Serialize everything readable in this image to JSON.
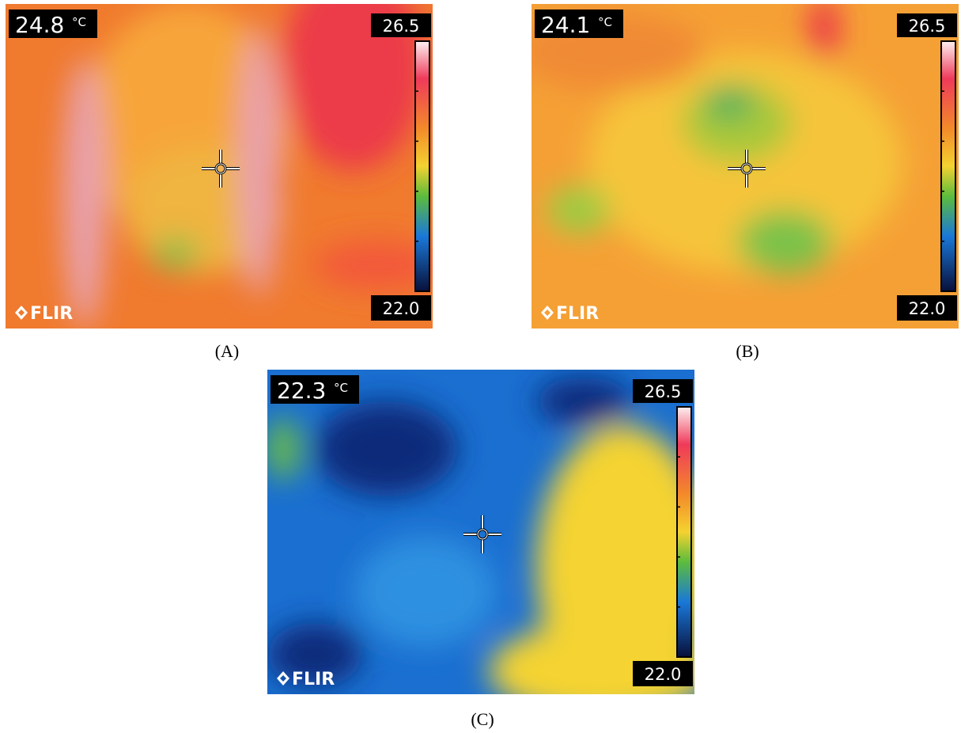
{
  "panels": [
    {
      "spot_temp": "24.8",
      "unit": "°C",
      "scale_max": "26.5",
      "scale_min": "22.0",
      "brand": "FLIR",
      "caption": "(A)"
    },
    {
      "spot_temp": "24.1",
      "unit": "°C",
      "scale_max": "26.5",
      "scale_min": "22.0",
      "brand": "FLIR",
      "caption": "(B)"
    },
    {
      "spot_temp": "22.3",
      "unit": "°C",
      "scale_max": "26.5",
      "scale_min": "22.0",
      "brand": "FLIR",
      "caption": "(C)"
    }
  ]
}
